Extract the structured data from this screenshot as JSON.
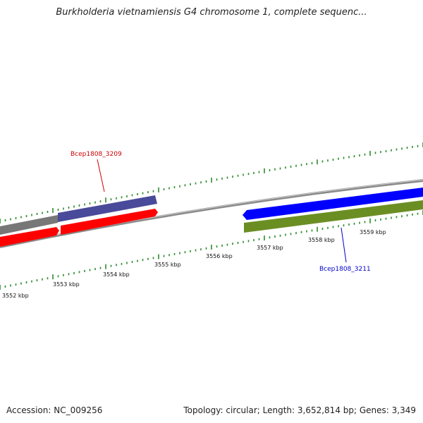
{
  "title": "Burkholderia vietnamiensis G4 chromosome 1, complete sequenc...",
  "footer": {
    "accession": "Accession: NC_009256",
    "summary": "Topology: circular; Length: 3,652,814 bp; Genes: 3,349"
  },
  "colors": {
    "backbone": "#8a8a8a",
    "tick": "#2e8b2e",
    "gene_red": "#ff0000",
    "gene_blue": "#0000ff",
    "gene_green": "#6b8e23",
    "gene_slate": "#4a4a9a",
    "gene_gray": "#777777",
    "label_red": "#cc0000",
    "label_blue": "#0000cc"
  },
  "kbp_labels": [
    "3552 kbp",
    "3553 kbp",
    "3554 kbp",
    "3555 kbp",
    "3556 kbp",
    "3557 kbp",
    "3558 kbp",
    "3559 kbp"
  ],
  "gene_labels": {
    "top": "Bcep1808_3209",
    "bottom": "Bcep1808_3211"
  }
}
